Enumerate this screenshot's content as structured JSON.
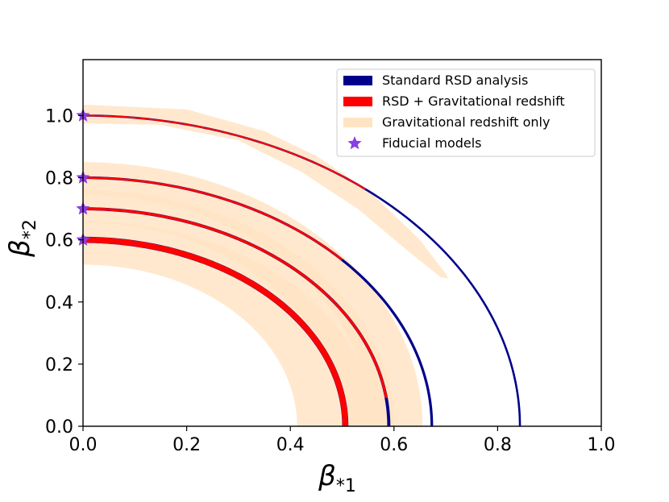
{
  "chart_data": {
    "type": "line",
    "title": "",
    "xlabel": "β*1",
    "ylabel": "β*2",
    "xlabel_base": "β",
    "xlabel_sub": "*1",
    "ylabel_base": "β",
    "ylabel_sub": "*2",
    "xlim": [
      0.0,
      1.0
    ],
    "ylim": [
      0.0,
      1.18
    ],
    "xticks": [
      "0.0",
      "0.2",
      "0.4",
      "0.6",
      "0.8",
      "1.0"
    ],
    "xtick_values": [
      0.0,
      0.2,
      0.4,
      0.6,
      0.8,
      1.0
    ],
    "yticks": [
      "0.0",
      "0.2",
      "0.4",
      "0.6",
      "0.8",
      "1.0"
    ],
    "ytick_values": [
      0.0,
      0.2,
      0.4,
      0.6,
      0.8,
      1.0
    ],
    "grid": false,
    "legend_position": "top-right",
    "legend": [
      {
        "label": "Standard RSD analysis",
        "color": "#00008b",
        "kind": "patch"
      },
      {
        "label": "RSD + Gravitational redshift",
        "color": "#ff0000",
        "kind": "patch"
      },
      {
        "label": "Gravitational redshift only",
        "color": "#ffe4c4",
        "kind": "patch"
      },
      {
        "label": "Fiducial models",
        "color": "#8a3ee6",
        "kind": "star"
      }
    ],
    "series": [
      {
        "name": "Fiducial 1.0",
        "fiducial": [
          0.0,
          1.0
        ],
        "standard_rsd": {
          "x_intercept": 0.843,
          "y_intercept": 1.0,
          "width": 0.004
        },
        "combined": {
          "x_intercept": 0.843,
          "y_intercept": 1.0,
          "width": 0.004,
          "red_end_x": 0.545
        },
        "grav_only": {
          "outer": [
            [
              0.0,
              1.035
            ],
            [
              0.2,
              1.02
            ],
            [
              0.35,
              0.95
            ],
            [
              0.45,
              0.87
            ],
            [
              0.55,
              0.76
            ],
            [
              0.65,
              0.6
            ],
            [
              0.7,
              0.49
            ],
            [
              0.705,
              0.475
            ]
          ],
          "inner": [
            [
              0.705,
              0.475
            ],
            [
              0.69,
              0.48
            ],
            [
              0.63,
              0.56
            ],
            [
              0.53,
              0.7
            ],
            [
              0.42,
              0.82
            ],
            [
              0.3,
              0.92
            ],
            [
              0.15,
              0.97
            ],
            [
              0.0,
              0.975
            ]
          ]
        }
      },
      {
        "name": "Fiducial 0.8",
        "fiducial": [
          0.0,
          0.8
        ],
        "standard_rsd": {
          "x_intercept": 0.673,
          "y_intercept": 0.8,
          "width": 0.005
        },
        "combined": {
          "x_intercept": 0.673,
          "y_intercept": 0.8,
          "width": 0.005,
          "red_end_x": 0.5
        },
        "grav_only": {
          "outer_x": 0.655,
          "outer_y": 0.85,
          "inner_x": 0.555,
          "inner_y": 0.745
        }
      },
      {
        "name": "Fiducial 0.7",
        "fiducial": [
          0.0,
          0.7
        ],
        "standard_rsd": {
          "x_intercept": 0.59,
          "y_intercept": 0.7,
          "width": 0.006
        },
        "combined": {
          "x_intercept": 0.59,
          "y_intercept": 0.7,
          "width": 0.006,
          "red_end_x": 0.585
        },
        "grav_only": {
          "outer_x": 0.6,
          "outer_y": 0.76,
          "inner_x": 0.5,
          "inner_y": 0.655
        }
      },
      {
        "name": "Fiducial 0.6",
        "fiducial": [
          0.0,
          0.6
        ],
        "standard_rsd": {
          "x_intercept": 0.506,
          "y_intercept": 0.6,
          "width": 0.012
        },
        "combined": {
          "x_intercept": 0.506,
          "y_intercept": 0.6,
          "width": 0.012,
          "red_end_x": 0.51
        },
        "grav_only": {
          "outer_x": 0.56,
          "outer_y": 0.66,
          "inner_x": 0.413,
          "inner_y": 0.52
        }
      }
    ]
  }
}
